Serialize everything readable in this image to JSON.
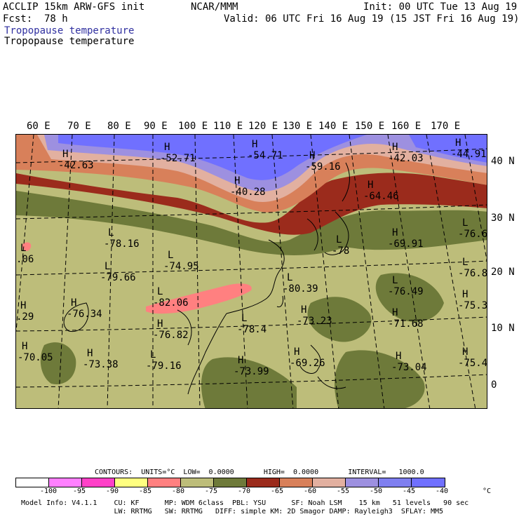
{
  "header": {
    "model_line": "ACCLIP 15km ARW-GFS init",
    "center_label": "NCAR/MMM",
    "init_line": "Init: 00 UTC Tue 13 Aug 19",
    "fcst_label": "Fcst:",
    "fcst_value": "78 h",
    "valid_line": "Valid: 06 UTC Fri 16 Aug 19 (15 JST Fri 16 Aug 19)",
    "field_title_colored": "Tropopause temperature",
    "field_title": "Tropopause temperature"
  },
  "map": {
    "longitude_labels": [
      "60 E",
      "70 E",
      "80 E",
      "90 E",
      "100 E",
      "110 E",
      "120 E",
      "130 E",
      "140 E",
      "150 E",
      "160 E",
      "170 E"
    ],
    "latitude_labels": [
      "40 N",
      "30 N",
      "20 N",
      "10 N",
      "0"
    ],
    "extrema": [
      {
        "type": "H",
        "value": "-42.63"
      },
      {
        "type": "H",
        "value": "-52.71"
      },
      {
        "type": "H",
        "value": "-54.71"
      },
      {
        "type": "H",
        "value": "-40.28"
      },
      {
        "type": "H",
        "value": "-59.16"
      },
      {
        "type": "H",
        "value": "-42.03"
      },
      {
        "type": "H",
        "value": "-44.91"
      },
      {
        "type": "H",
        "value": "-64.46"
      },
      {
        "type": "L",
        "value": "-78.16"
      },
      {
        "type": "L",
        "value": "-74.95"
      },
      {
        "type": "L",
        "value": "-79.66"
      },
      {
        "type": "L",
        "value": "-82.06"
      },
      {
        "type": "L",
        "value": "-80.39"
      },
      {
        "type": "L",
        "value": "-78"
      },
      {
        "type": "H",
        "value": "-69.91"
      },
      {
        "type": "L",
        "value": "-76.6"
      },
      {
        "type": "L",
        "value": "-76.8"
      },
      {
        "type": "L",
        "value": "-76.49"
      },
      {
        "type": "H",
        "value": "-75.3"
      },
      {
        "type": "H",
        "value": "-76.34"
      },
      {
        "type": "H",
        "value": "-76.82"
      },
      {
        "type": "L",
        "value": "-78.4"
      },
      {
        "type": "H",
        "value": "-73.23"
      },
      {
        "type": "H",
        "value": "-71.68"
      },
      {
        "type": "H",
        "value": "-70.05"
      },
      {
        "type": "H",
        "value": "-73.38"
      },
      {
        "type": "L",
        "value": "-79.16"
      },
      {
        "type": "H",
        "value": "-73.99"
      },
      {
        "type": "H",
        "value": "-69.26"
      },
      {
        "type": "H",
        "value": "-73.04"
      },
      {
        "type": "H",
        "value": "-75.4"
      },
      {
        "type": "L",
        "value": ".06"
      },
      {
        "type": "H",
        "value": ".29"
      }
    ]
  },
  "contours": {
    "line": "CONTOURS:  UNITS=°C  LOW=  0.0000       HIGH=  0.0000       INTERVAL=   1000.0"
  },
  "colorbar": {
    "colors": [
      "#ffffff",
      "#ff80ff",
      "#ff40c8",
      "#ffff80",
      "#ff8080",
      "#bdbd7a",
      "#6e7a3a",
      "#9b2b1c",
      "#d8805a",
      "#e2b0a0",
      "#9d90e0",
      "#7f7ff0",
      "#7070ff"
    ],
    "labels": [
      "-100",
      "-95",
      "-90",
      "-85",
      "-80",
      "-75",
      "-70",
      "-65",
      "-60",
      "-55",
      "-50",
      "-45",
      "-40"
    ],
    "unit": "°C"
  },
  "footer": {
    "line1": "Model Info: V4.1.1    CU: KF      MP: WDM 6class  PBL: YSU      SF: Noah LSM    15 km   51 levels   90 sec",
    "line2": "                      LW: RRTMG   SW: RRTMG   DIFF: simple KM: 2D Smagor DAMP: Rayleigh3  SFLAY: MM5"
  }
}
